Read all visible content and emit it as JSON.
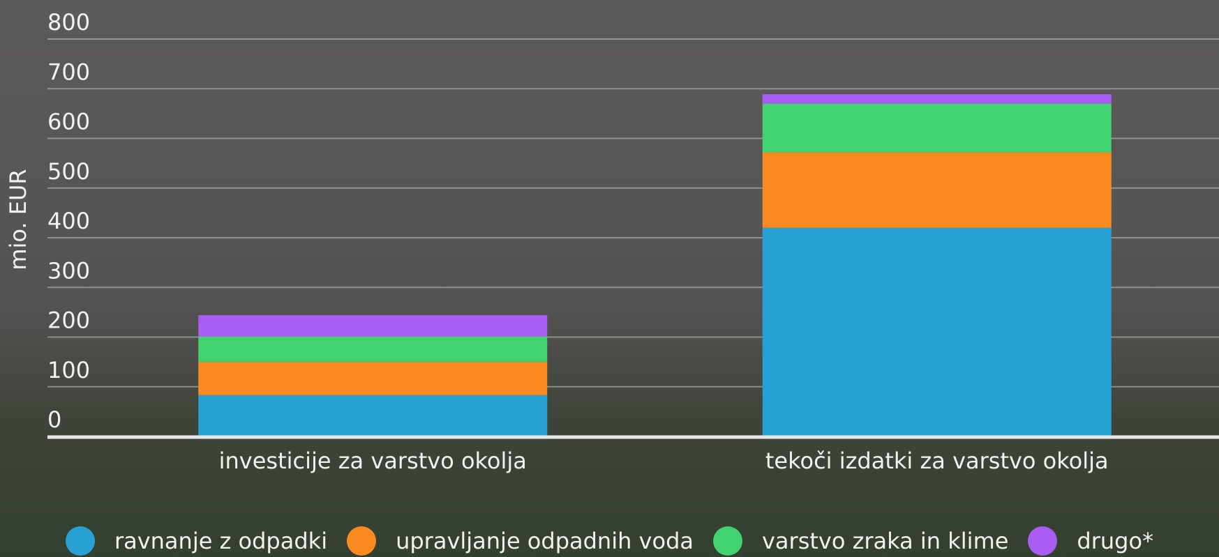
{
  "chart_data": {
    "type": "stacked_bar",
    "y_label": "mio. EUR",
    "categories": [
      "investicije za varstvo okolja",
      "tekoči izdatki za varstvo okolja"
    ],
    "series": [
      {
        "name": "ravnanje z odpadki",
        "color": "#25a2d3",
        "values": [
          83,
          420
        ]
      },
      {
        "name": "upravljanje odpadnih voda",
        "color": "#f88a1f",
        "values": [
          67,
          152
        ]
      },
      {
        "name": "varstvo zraka in klime",
        "color": "#42d26f",
        "values": [
          51,
          98
        ]
      },
      {
        "name": "drugo*",
        "color": "#a95df2",
        "values": [
          43,
          19
        ]
      }
    ],
    "ylim": [
      0,
      800
    ],
    "yticks": [
      0,
      100,
      200,
      300,
      400,
      500,
      600,
      700,
      800
    ],
    "grid": true
  }
}
